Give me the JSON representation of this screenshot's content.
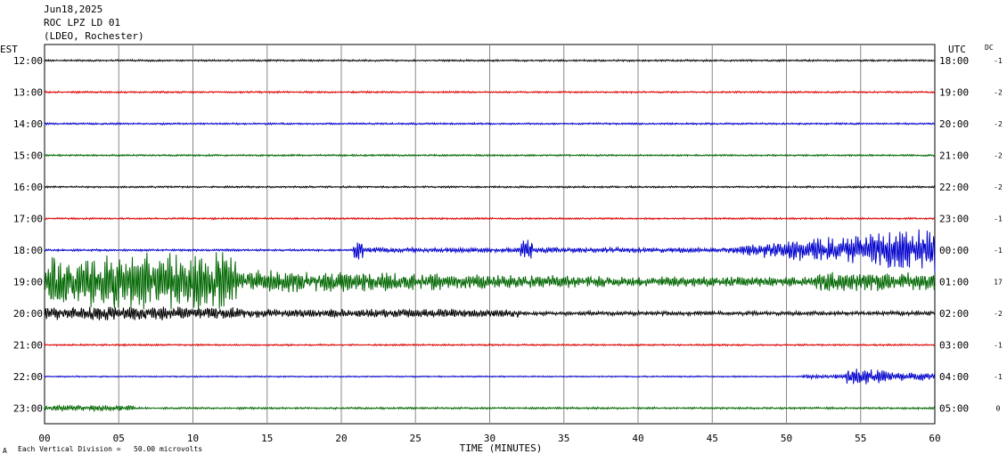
{
  "header": {
    "date": "Jun18,2025",
    "station": "ROC LPZ LD 01",
    "network": "(LDEO, Rochester)"
  },
  "corners": {
    "left": "EST",
    "right": "UTC",
    "dc": "DC"
  },
  "footer": {
    "scale_note": "Each Vertical Division =   50.00 microvolts",
    "mark": "A"
  },
  "chart_data": {
    "type": "line",
    "title": "",
    "xlabel": "TIME (MINUTES)",
    "xlim": [
      0,
      60
    ],
    "x_ticks": [
      "00",
      "05",
      "10",
      "15",
      "20",
      "25",
      "30",
      "35",
      "40",
      "45",
      "50",
      "55",
      "60"
    ],
    "grid": true,
    "series": [
      {
        "est": "12:00",
        "utc": "18:00",
        "dc": "-1",
        "color": "#000000",
        "activity": "quiet"
      },
      {
        "est": "13:00",
        "utc": "19:00",
        "dc": "-2",
        "color": "#dd0000",
        "activity": "quiet"
      },
      {
        "est": "14:00",
        "utc": "20:00",
        "dc": "-2",
        "color": "#0000cc",
        "activity": "quiet"
      },
      {
        "est": "15:00",
        "utc": "21:00",
        "dc": "-2",
        "color": "#006600",
        "activity": "quiet"
      },
      {
        "est": "16:00",
        "utc": "22:00",
        "dc": "-2",
        "color": "#000000",
        "activity": "quiet"
      },
      {
        "est": "17:00",
        "utc": "23:00",
        "dc": "-1",
        "color": "#dd0000",
        "activity": "quiet"
      },
      {
        "est": "18:00",
        "utc": "00:00",
        "dc": "-1",
        "color": "#0000cc",
        "activity": "late-arrival",
        "onset_min": 20.8,
        "late_min": 46
      },
      {
        "est": "19:00",
        "utc": "01:00",
        "dc": "17",
        "color": "#006600",
        "activity": "major-event",
        "onset_min": 0
      },
      {
        "est": "20:00",
        "utc": "02:00",
        "dc": "-2",
        "color": "#000000",
        "activity": "coda"
      },
      {
        "est": "21:00",
        "utc": "03:00",
        "dc": "-1",
        "color": "#dd0000",
        "activity": "quiet"
      },
      {
        "est": "22:00",
        "utc": "04:00",
        "dc": "-1",
        "color": "#0000cc",
        "activity": "late-burst",
        "onset_min": 51
      },
      {
        "est": "23:00",
        "utc": "05:00",
        "dc": "0",
        "color": "#006600",
        "activity": "early-noise"
      }
    ]
  }
}
